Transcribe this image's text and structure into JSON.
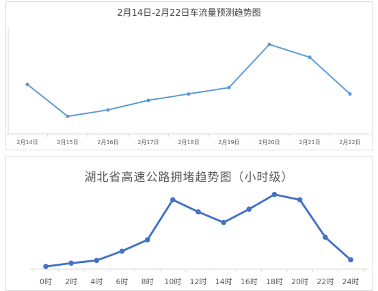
{
  "chart_data": [
    {
      "type": "line",
      "title": "2月14日-2月22日车流量预测趋势图",
      "xlabel": "",
      "ylabel": "",
      "categories": [
        "2月14日",
        "2月15日",
        "2月16日",
        "2月17日",
        "2月18日",
        "2月19日",
        "2月20日",
        "2月21日",
        "2月22日"
      ],
      "series": [
        {
          "values": [
            62,
            22,
            30,
            42,
            50,
            58,
            112,
            96,
            50
          ]
        }
      ],
      "ylim": [
        0,
        130
      ],
      "grid": false,
      "legend": "none",
      "line_color": "#5b9bd5",
      "axis_color": "#d9d9d9"
    },
    {
      "type": "line",
      "title": "湖北省高速公路拥堵趋势图（小时级）",
      "xlabel": "",
      "ylabel": "",
      "categories": [
        "0时",
        "2时",
        "4时",
        "6时",
        "8时",
        "10时",
        "12时",
        "14时",
        "16时",
        "18时",
        "20时",
        "22时",
        "24时"
      ],
      "series": [
        {
          "values": [
            4,
            9,
            13,
            27,
            44,
            104,
            86,
            70,
            90,
            112,
            104,
            48,
            14
          ]
        }
      ],
      "ylim": [
        0,
        125
      ],
      "grid": false,
      "legend": "none",
      "line_color": "#4472c4",
      "axis_color": "#d9d9d9"
    }
  ]
}
